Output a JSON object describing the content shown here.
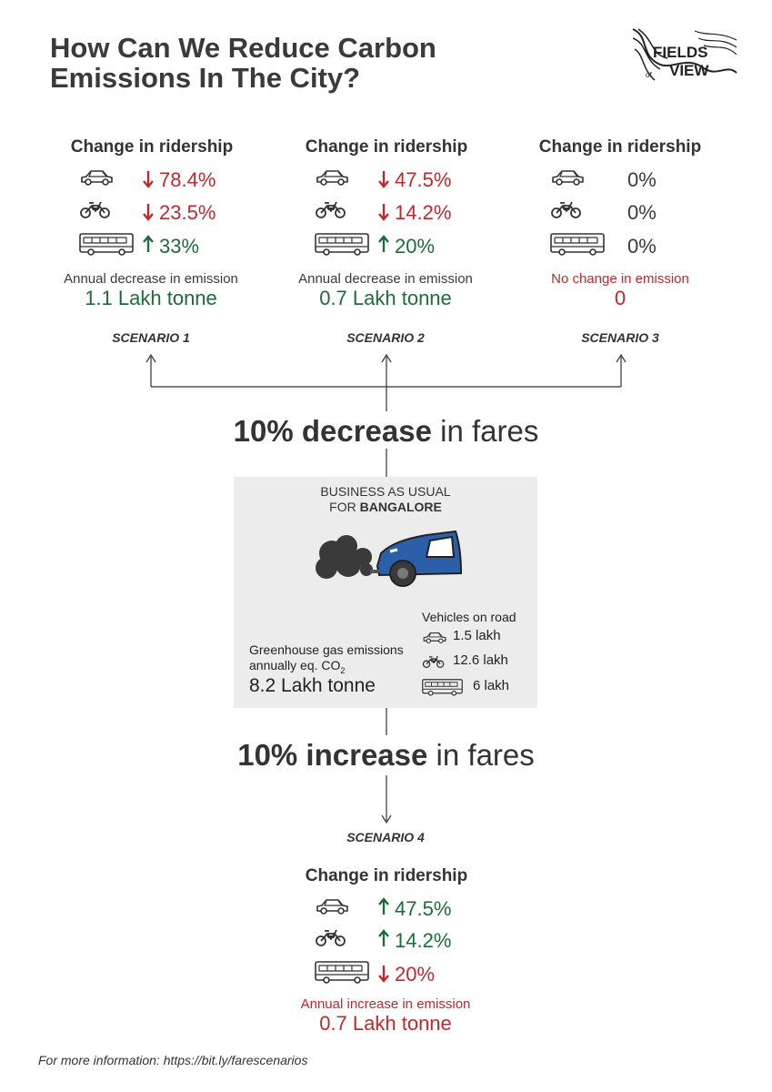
{
  "title": "How Can We Reduce Carbon Emissions In The City?",
  "logo": {
    "text_1": "FIELDS",
    "text_2": "of",
    "text_3": "VIEW"
  },
  "scenarios_top": [
    {
      "heading": "Change in ridership",
      "car": {
        "direction": "down",
        "value": "78.4%"
      },
      "bike": {
        "direction": "down",
        "value": "23.5%"
      },
      "bus": {
        "direction": "up",
        "value": "33%"
      },
      "note": "Annual decrease in emission",
      "amount": "1.1 Lakh tonne",
      "label": "SCENARIO 1"
    },
    {
      "heading": "Change in ridership",
      "car": {
        "direction": "down",
        "value": "47.5%"
      },
      "bike": {
        "direction": "down",
        "value": "14.2%"
      },
      "bus": {
        "direction": "up",
        "value": "20%"
      },
      "note": "Annual decrease in emission",
      "amount": "0.7 Lakh tonne",
      "label": "SCENARIO 2"
    },
    {
      "heading": "Change in ridership",
      "car": {
        "direction": "none",
        "value": "0%"
      },
      "bike": {
        "direction": "none",
        "value": "0%"
      },
      "bus": {
        "direction": "none",
        "value": "0%"
      },
      "note": "No change  in emission",
      "amount": "0",
      "label": "SCENARIO 3"
    }
  ],
  "decrease_fares": {
    "bold": "10% decrease",
    "rest": " in fares"
  },
  "business_as_usual": {
    "line1": "BUSINESS AS USUAL",
    "line2_prefix": "FOR ",
    "line2_bold": "BANGALORE",
    "emissions_label_1": "Greenhouse gas emissions",
    "emissions_label_2": "annually eq. CO",
    "emissions_sub": "2",
    "emissions_value": "8.2 Lakh tonne",
    "vehicles_title": "Vehicles on road",
    "vehicles": {
      "car": "1.5 lakh",
      "bike": "12.6 lakh",
      "bus": "6 lakh"
    }
  },
  "increase_fares": {
    "bold": "10% increase",
    "rest": " in fares"
  },
  "scenario4": {
    "label": "SCENARIO 4",
    "heading": "Change in ridership",
    "car": {
      "direction": "up",
      "value": "47.5%"
    },
    "bike": {
      "direction": "up",
      "value": "14.2%"
    },
    "bus": {
      "direction": "down",
      "value": "20%"
    },
    "note": "Annual increase in emission",
    "amount": "0.7 Lakh tonne"
  },
  "footer": "For more information: https://bit.ly/farescenarios",
  "colors": {
    "decrease": "#c0282d",
    "increase": "#1e6b3a",
    "panel": "#ececec",
    "car_body": "#2b5fa8"
  }
}
